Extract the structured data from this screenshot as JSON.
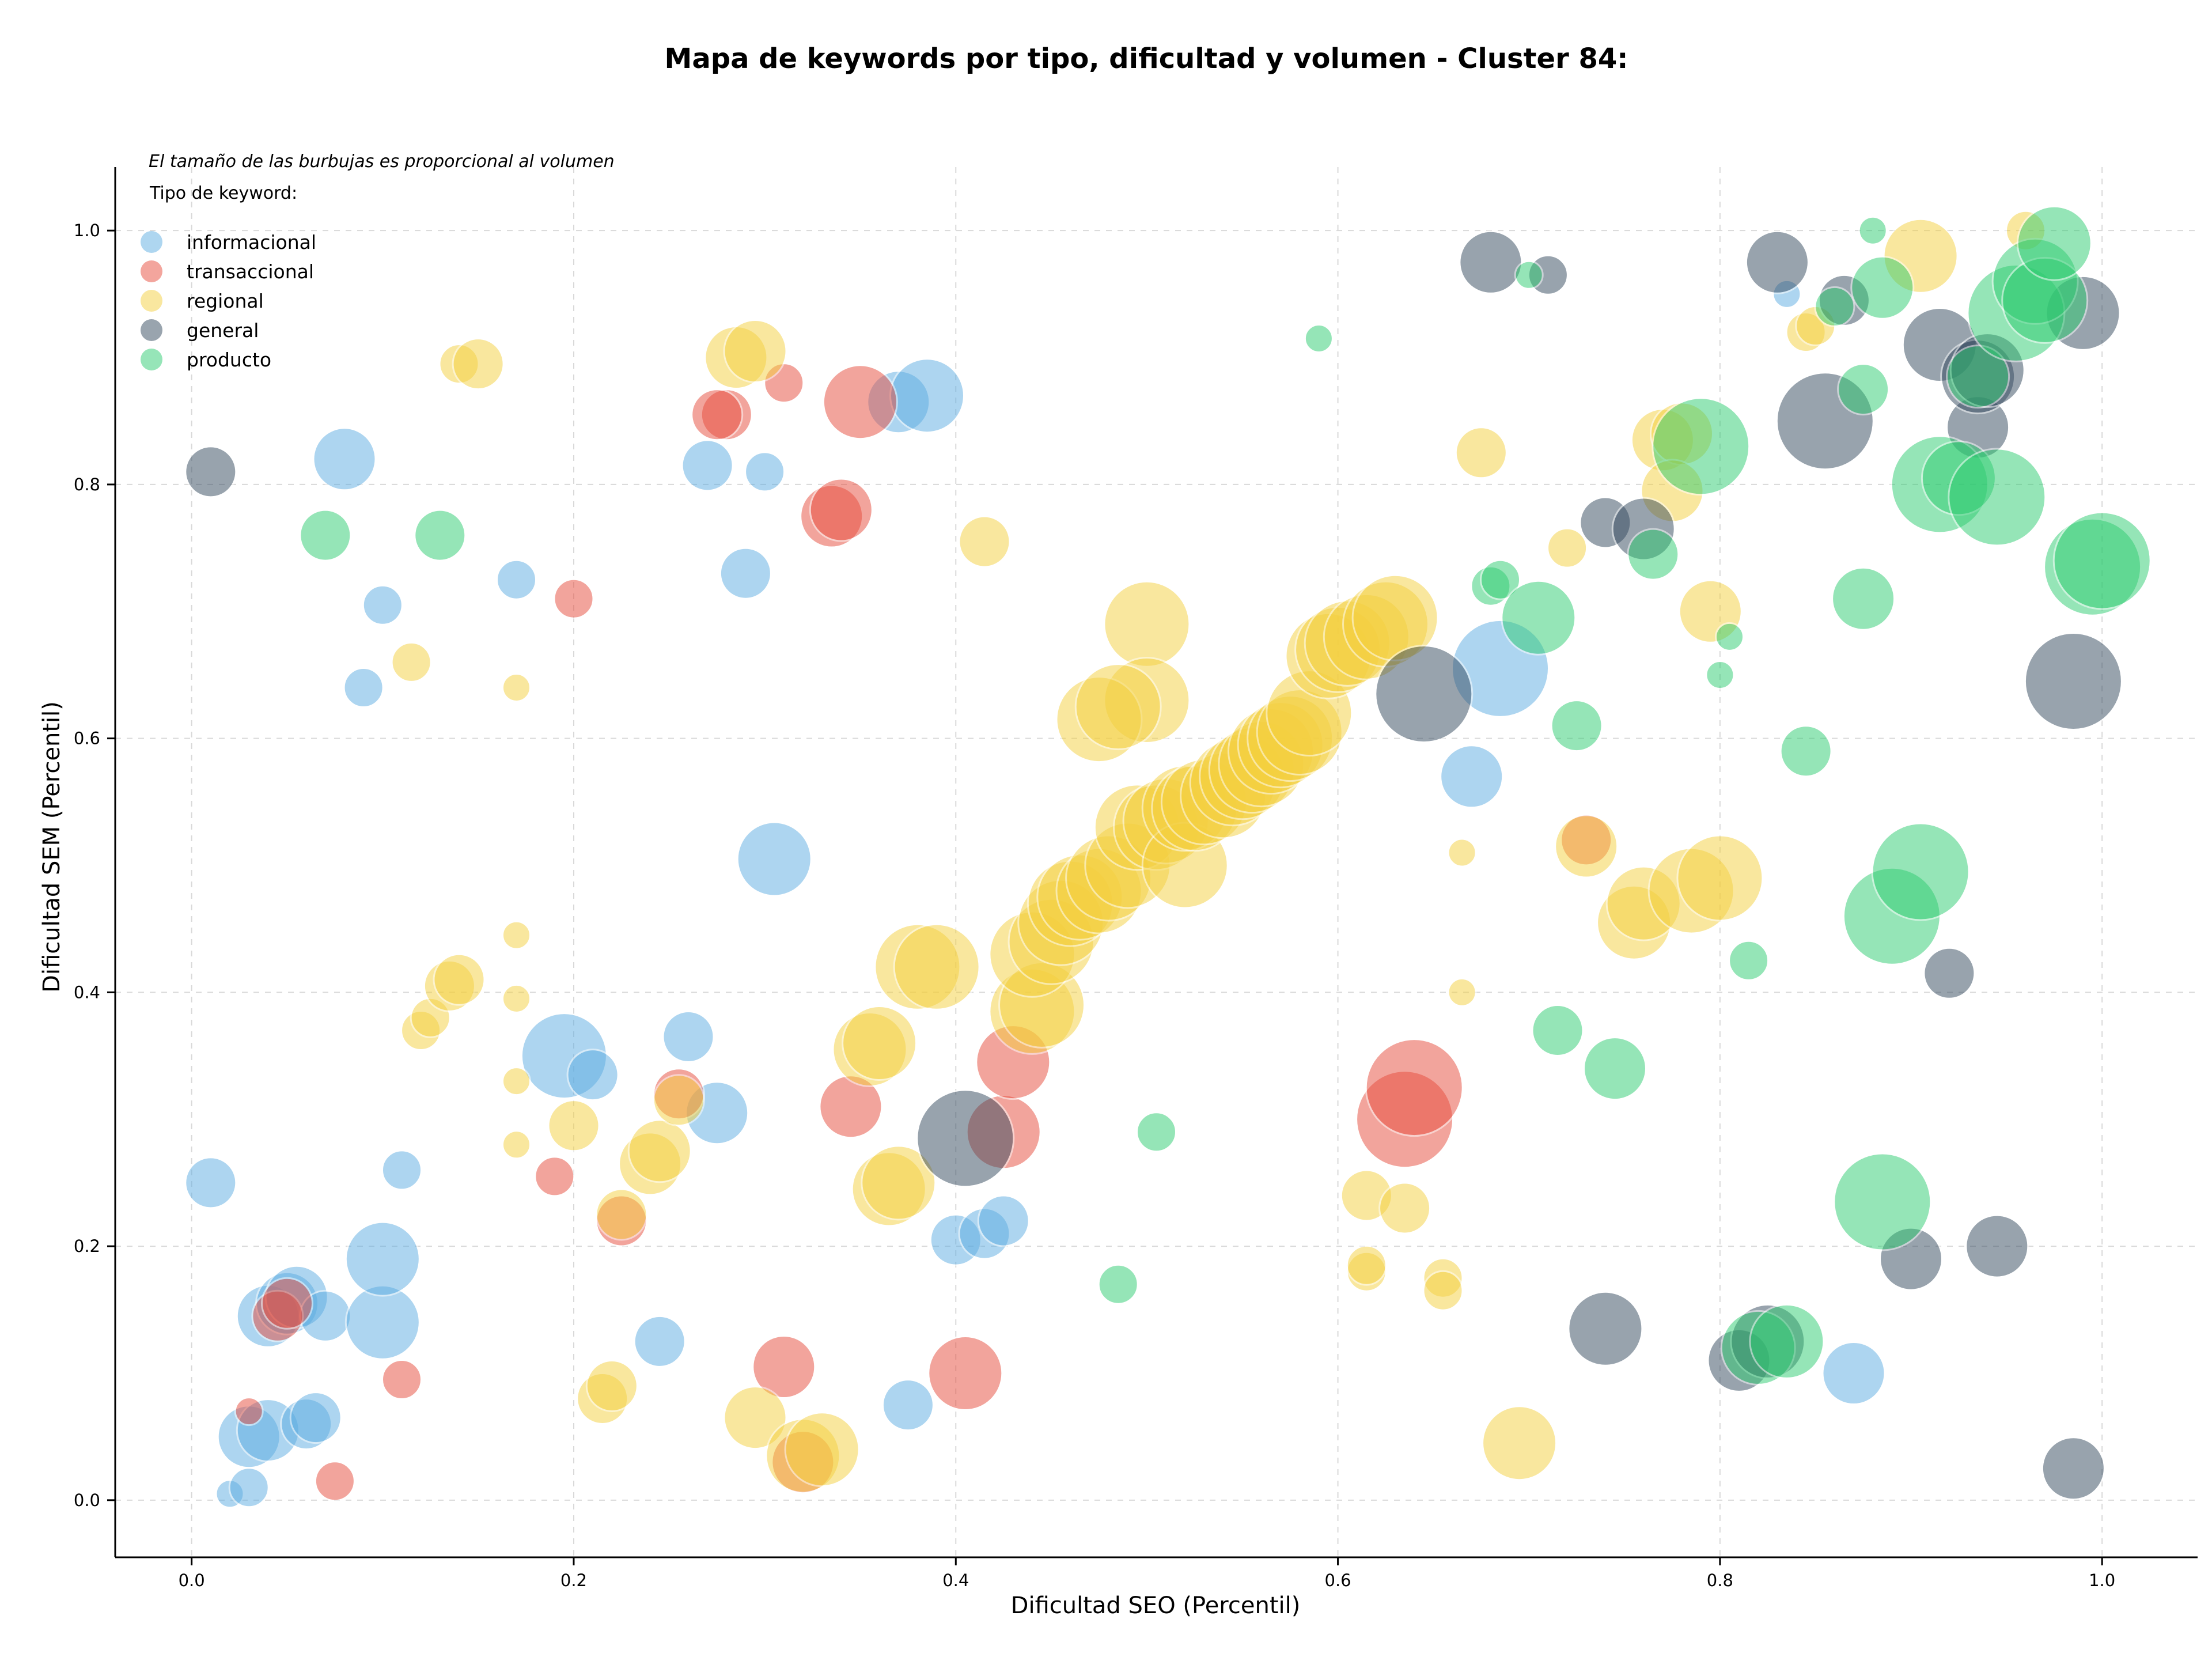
{
  "chart_data": {
    "type": "scatter",
    "title": "Mapa de keywords por tipo, dificultad y volumen - Cluster 84:",
    "xlabel": "Dificultad SEO (Percentil)",
    "ylabel": "Dificultad SEM (Percentil)",
    "xlim": [
      -0.04,
      1.05
    ],
    "ylim": [
      -0.045,
      1.05
    ],
    "xticks": [
      0.0,
      0.2,
      0.4,
      0.6,
      0.8,
      1.0
    ],
    "yticks": [
      0.0,
      0.2,
      0.4,
      0.6,
      0.8,
      1.0
    ],
    "grid": true,
    "size_note": "El tamaño de las burbujas es proporcional al volumen",
    "legend": {
      "title": "Tipo de keyword:",
      "position": "top-left",
      "entries": [
        "informacional",
        "transaccional",
        "regional",
        "general",
        "producto"
      ]
    },
    "series": [
      {
        "name": "informacional",
        "color": "#5DADE2",
        "points": [
          [
            0.02,
            0.005,
            1
          ],
          [
            0.03,
            0.01,
            2
          ],
          [
            0.03,
            0.05,
            4
          ],
          [
            0.04,
            0.055,
            4
          ],
          [
            0.06,
            0.06,
            3
          ],
          [
            0.065,
            0.065,
            3
          ],
          [
            0.04,
            0.145,
            4
          ],
          [
            0.05,
            0.155,
            4
          ],
          [
            0.055,
            0.16,
            4
          ],
          [
            0.07,
            0.145,
            3
          ],
          [
            0.1,
            0.14,
            5
          ],
          [
            0.1,
            0.19,
            5
          ],
          [
            0.11,
            0.26,
            2
          ],
          [
            0.01,
            0.25,
            3
          ],
          [
            0.09,
            0.64,
            2
          ],
          [
            0.08,
            0.82,
            4
          ],
          [
            0.1,
            0.705,
            2
          ],
          [
            0.17,
            0.725,
            2
          ],
          [
            0.195,
            0.35,
            6
          ],
          [
            0.21,
            0.335,
            3
          ],
          [
            0.26,
            0.365,
            3
          ],
          [
            0.275,
            0.305,
            4
          ],
          [
            0.245,
            0.125,
            3
          ],
          [
            0.27,
            0.815,
            3
          ],
          [
            0.3,
            0.81,
            2
          ],
          [
            0.29,
            0.73,
            3
          ],
          [
            0.305,
            0.505,
            5
          ],
          [
            0.37,
            0.865,
            4
          ],
          [
            0.385,
            0.87,
            5
          ],
          [
            0.375,
            0.075,
            3
          ],
          [
            0.4,
            0.205,
            3
          ],
          [
            0.415,
            0.21,
            3
          ],
          [
            0.425,
            0.22,
            3
          ],
          [
            0.67,
            0.57,
            4
          ],
          [
            0.685,
            0.655,
            7
          ],
          [
            0.835,
            0.95,
            1
          ],
          [
            0.87,
            0.1,
            4
          ]
        ]
      },
      {
        "name": "transaccional",
        "color": "#E74C3C",
        "points": [
          [
            0.03,
            0.07,
            1
          ],
          [
            0.045,
            0.145,
            3
          ],
          [
            0.05,
            0.155,
            3
          ],
          [
            0.075,
            0.015,
            2
          ],
          [
            0.11,
            0.095,
            2
          ],
          [
            0.19,
            0.255,
            2
          ],
          [
            0.2,
            0.71,
            2
          ],
          [
            0.225,
            0.22,
            3
          ],
          [
            0.255,
            0.32,
            3
          ],
          [
            0.28,
            0.855,
            3
          ],
          [
            0.275,
            0.855,
            3
          ],
          [
            0.31,
            0.105,
            4
          ],
          [
            0.32,
            0.03,
            4
          ],
          [
            0.31,
            0.88,
            2
          ],
          [
            0.335,
            0.775,
            4
          ],
          [
            0.34,
            0.78,
            4
          ],
          [
            0.35,
            0.865,
            5
          ],
          [
            0.345,
            0.31,
            4
          ],
          [
            0.405,
            0.1,
            5
          ],
          [
            0.425,
            0.29,
            5
          ],
          [
            0.43,
            0.345,
            5
          ],
          [
            0.635,
            0.3,
            7
          ],
          [
            0.64,
            0.325,
            7
          ],
          [
            0.73,
            0.52,
            3
          ]
        ]
      },
      {
        "name": "regional",
        "color": "#F4D03F",
        "points": [
          [
            0.115,
            0.66,
            2
          ],
          [
            0.14,
            0.895,
            2
          ],
          [
            0.15,
            0.895,
            3
          ],
          [
            0.12,
            0.37,
            2
          ],
          [
            0.125,
            0.38,
            2
          ],
          [
            0.135,
            0.405,
            3
          ],
          [
            0.14,
            0.41,
            3
          ],
          [
            0.17,
            0.445,
            1
          ],
          [
            0.17,
            0.395,
            1
          ],
          [
            0.17,
            0.33,
            1
          ],
          [
            0.17,
            0.28,
            1
          ],
          [
            0.17,
            0.64,
            1
          ],
          [
            0.2,
            0.295,
            3
          ],
          [
            0.215,
            0.08,
            3
          ],
          [
            0.22,
            0.09,
            3
          ],
          [
            0.225,
            0.225,
            3
          ],
          [
            0.24,
            0.265,
            4
          ],
          [
            0.245,
            0.275,
            4
          ],
          [
            0.255,
            0.315,
            3
          ],
          [
            0.285,
            0.9,
            4
          ],
          [
            0.295,
            0.905,
            4
          ],
          [
            0.295,
            0.065,
            4
          ],
          [
            0.32,
            0.035,
            5
          ],
          [
            0.33,
            0.04,
            5
          ],
          [
            0.355,
            0.355,
            5
          ],
          [
            0.36,
            0.36,
            5
          ],
          [
            0.365,
            0.245,
            5
          ],
          [
            0.37,
            0.25,
            5
          ],
          [
            0.38,
            0.42,
            6
          ],
          [
            0.39,
            0.42,
            6
          ],
          [
            0.415,
            0.755,
            3
          ],
          [
            0.44,
            0.385,
            6
          ],
          [
            0.445,
            0.39,
            6
          ],
          [
            0.44,
            0.43,
            6
          ],
          [
            0.45,
            0.44,
            6
          ],
          [
            0.455,
            0.455,
            6
          ],
          [
            0.46,
            0.47,
            6
          ],
          [
            0.465,
            0.475,
            6
          ],
          [
            0.475,
            0.48,
            6
          ],
          [
            0.48,
            0.49,
            6
          ],
          [
            0.49,
            0.5,
            6
          ],
          [
            0.495,
            0.53,
            6
          ],
          [
            0.5,
            0.69,
            6
          ],
          [
            0.5,
            0.63,
            6
          ],
          [
            0.475,
            0.615,
            6
          ],
          [
            0.485,
            0.625,
            6
          ],
          [
            0.505,
            0.53,
            6
          ],
          [
            0.51,
            0.535,
            6
          ],
          [
            0.52,
            0.5,
            6
          ],
          [
            0.52,
            0.545,
            6
          ],
          [
            0.525,
            0.545,
            6
          ],
          [
            0.53,
            0.55,
            6
          ],
          [
            0.54,
            0.555,
            6
          ],
          [
            0.545,
            0.565,
            6
          ],
          [
            0.55,
            0.57,
            6
          ],
          [
            0.555,
            0.575,
            6
          ],
          [
            0.56,
            0.58,
            6
          ],
          [
            0.565,
            0.59,
            6
          ],
          [
            0.57,
            0.595,
            6
          ],
          [
            0.575,
            0.6,
            6
          ],
          [
            0.58,
            0.605,
            6
          ],
          [
            0.585,
            0.62,
            6
          ],
          [
            0.595,
            0.665,
            6
          ],
          [
            0.6,
            0.67,
            6
          ],
          [
            0.605,
            0.675,
            6
          ],
          [
            0.615,
            0.68,
            6
          ],
          [
            0.625,
            0.69,
            6
          ],
          [
            0.63,
            0.695,
            6
          ],
          [
            0.615,
            0.24,
            3
          ],
          [
            0.615,
            0.18,
            2
          ],
          [
            0.615,
            0.185,
            2
          ],
          [
            0.635,
            0.23,
            3
          ],
          [
            0.655,
            0.175,
            2
          ],
          [
            0.655,
            0.165,
            2
          ],
          [
            0.665,
            0.51,
            1
          ],
          [
            0.665,
            0.4,
            1
          ],
          [
            0.675,
            0.825,
            3
          ],
          [
            0.695,
            0.045,
            5
          ],
          [
            0.72,
            0.75,
            2
          ],
          [
            0.73,
            0.515,
            4
          ],
          [
            0.755,
            0.455,
            5
          ],
          [
            0.76,
            0.47,
            5
          ],
          [
            0.77,
            0.835,
            4
          ],
          [
            0.78,
            0.84,
            4
          ],
          [
            0.775,
            0.795,
            4
          ],
          [
            0.785,
            0.48,
            6
          ],
          [
            0.8,
            0.49,
            6
          ],
          [
            0.795,
            0.7,
            4
          ],
          [
            0.845,
            0.92,
            2
          ],
          [
            0.85,
            0.925,
            2
          ],
          [
            0.905,
            0.98,
            5
          ],
          [
            0.96,
            1.0,
            2
          ]
        ]
      },
      {
        "name": "general",
        "color": "#34495E",
        "points": [
          [
            0.01,
            0.81,
            3
          ],
          [
            0.405,
            0.285,
            7
          ],
          [
            0.645,
            0.635,
            7
          ],
          [
            0.68,
            0.975,
            4
          ],
          [
            0.71,
            0.965,
            2
          ],
          [
            0.74,
            0.135,
            5
          ],
          [
            0.74,
            0.77,
            3
          ],
          [
            0.76,
            0.765,
            4
          ],
          [
            0.81,
            0.11,
            4
          ],
          [
            0.825,
            0.125,
            5
          ],
          [
            0.83,
            0.975,
            4
          ],
          [
            0.855,
            0.85,
            7
          ],
          [
            0.865,
            0.945,
            3
          ],
          [
            0.9,
            0.19,
            4
          ],
          [
            0.915,
            0.91,
            5
          ],
          [
            0.92,
            0.415,
            3
          ],
          [
            0.935,
            0.845,
            4
          ],
          [
            0.935,
            0.885,
            5
          ],
          [
            0.94,
            0.89,
            5
          ],
          [
            0.945,
            0.2,
            4
          ],
          [
            0.985,
            0.025,
            4
          ],
          [
            0.985,
            0.645,
            7
          ],
          [
            0.99,
            0.935,
            5
          ]
        ]
      },
      {
        "name": "producto",
        "color": "#2ECC71",
        "points": [
          [
            0.07,
            0.76,
            3
          ],
          [
            0.13,
            0.76,
            3
          ],
          [
            0.485,
            0.17,
            2
          ],
          [
            0.505,
            0.29,
            2
          ],
          [
            0.59,
            0.915,
            1
          ],
          [
            0.68,
            0.72,
            2
          ],
          [
            0.685,
            0.725,
            2
          ],
          [
            0.7,
            0.965,
            1
          ],
          [
            0.705,
            0.695,
            5
          ],
          [
            0.715,
            0.37,
            3
          ],
          [
            0.725,
            0.61,
            3
          ],
          [
            0.745,
            0.34,
            4
          ],
          [
            0.765,
            0.745,
            3
          ],
          [
            0.79,
            0.83,
            7
          ],
          [
            0.8,
            0.65,
            1
          ],
          [
            0.805,
            0.68,
            1
          ],
          [
            0.815,
            0.425,
            2
          ],
          [
            0.82,
            0.12,
            5
          ],
          [
            0.835,
            0.125,
            5
          ],
          [
            0.845,
            0.59,
            3
          ],
          [
            0.86,
            0.94,
            2
          ],
          [
            0.875,
            0.71,
            4
          ],
          [
            0.875,
            0.875,
            3
          ],
          [
            0.88,
            1.0,
            1
          ],
          [
            0.885,
            0.235,
            7
          ],
          [
            0.885,
            0.955,
            4
          ],
          [
            0.89,
            0.46,
            7
          ],
          [
            0.905,
            0.495,
            7
          ],
          [
            0.915,
            0.8,
            7
          ],
          [
            0.925,
            0.805,
            5
          ],
          [
            0.935,
            0.885,
            4
          ],
          [
            0.945,
            0.79,
            7
          ],
          [
            0.955,
            0.935,
            7
          ],
          [
            0.965,
            0.96,
            6
          ],
          [
            0.97,
            0.945,
            6
          ],
          [
            0.975,
            0.99,
            5
          ],
          [
            0.995,
            0.735,
            7
          ],
          [
            1.0,
            0.74,
            7
          ]
        ]
      }
    ]
  }
}
